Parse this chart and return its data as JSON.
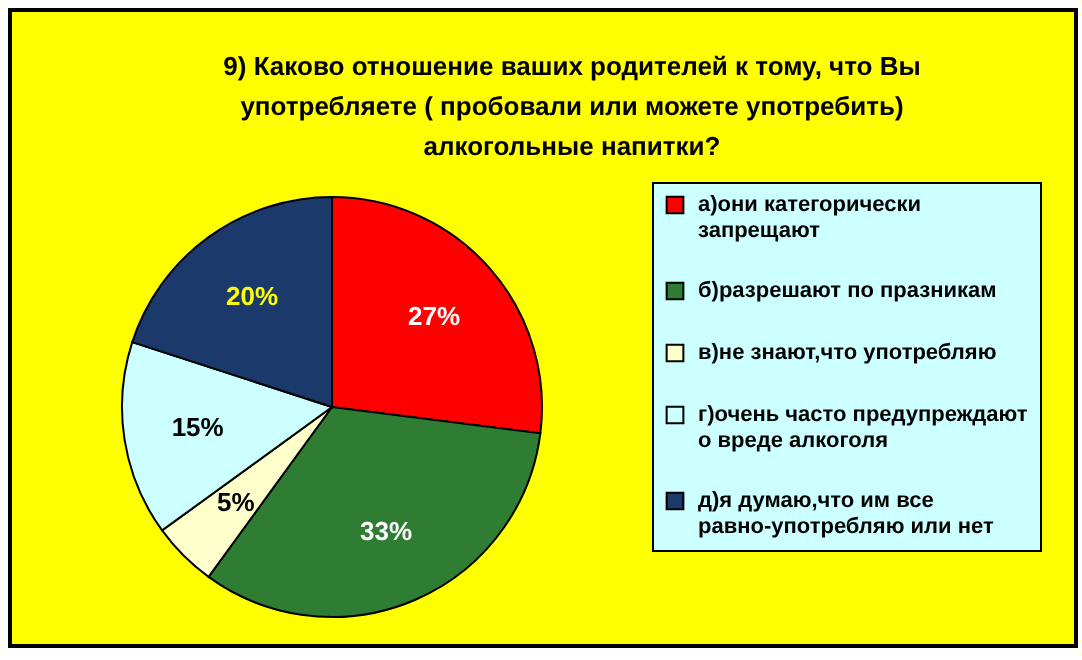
{
  "chart_data": {
    "type": "pie",
    "title": "9) Каково отношение ваших  родителей к тому, что Вы употребляете ( пробовали или можете употребить) алкогольные напитки?",
    "categories": [
      "а)они категорически запрещают",
      "б)разрешают по празникам",
      "в)не знают,что употребляю",
      "г)очень часто предупреждают о вреде алкоголя",
      "д)я думаю,что им все равно-употребляю или нет"
    ],
    "values": [
      27,
      33,
      5,
      15,
      20
    ],
    "colors": [
      "#ff0000",
      "#2e7d32",
      "#ffffcc",
      "#ccffff",
      "#1b3a6b"
    ],
    "value_labels": [
      "27%",
      "33%",
      "5%",
      "15%",
      "20%"
    ],
    "legend": "right"
  }
}
